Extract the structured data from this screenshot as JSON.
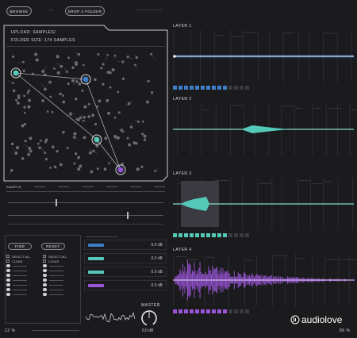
{
  "header": {
    "browse_label": "BROWSE",
    "nav_mark": "—",
    "drop_label": "DROP A FOLDER",
    "right_mark": "——————"
  },
  "browser": {
    "path_text": "UPLOAD: samples/",
    "folder_size_text": "FOLDER SIZE: 174 samples",
    "tabs": [
      "SAMPLE",
      "",
      "",
      "",
      "",
      "",
      ""
    ]
  },
  "layers": [
    {
      "label": "LAYER 1",
      "color": "#3e7fc7"
    },
    {
      "label": "LAYER 2",
      "color": "#55c9b8"
    },
    {
      "label": "LAYER 3",
      "color": "#55c9b8"
    },
    {
      "label": "LAYER 4",
      "color": "#9a55d8"
    }
  ],
  "left_panel": {
    "find_label": "FIND",
    "reset_label": "RESET",
    "select_all_label": "SELECT ALL",
    "clear_label": "CLEAR",
    "category_items": [
      "",
      "",
      "",
      "",
      "",
      "",
      "",
      "",
      "",
      "",
      "",
      "",
      "",
      ""
    ]
  },
  "mixer": {
    "channels": [
      {
        "db": "0.0 dB",
        "color": "#3e7fc7"
      },
      {
        "db": "0.0 dB",
        "color": "#55c9b8"
      },
      {
        "db": "0.0 dB",
        "color": "#55c9b8"
      },
      {
        "db": "0.0 dB",
        "color": "#9a55d8"
      }
    ],
    "master_label": "MASTER",
    "master_db": "0.0 dB"
  },
  "footer": {
    "left_value": "12 %",
    "right_value": "89 %"
  },
  "watermark": "audiolove"
}
